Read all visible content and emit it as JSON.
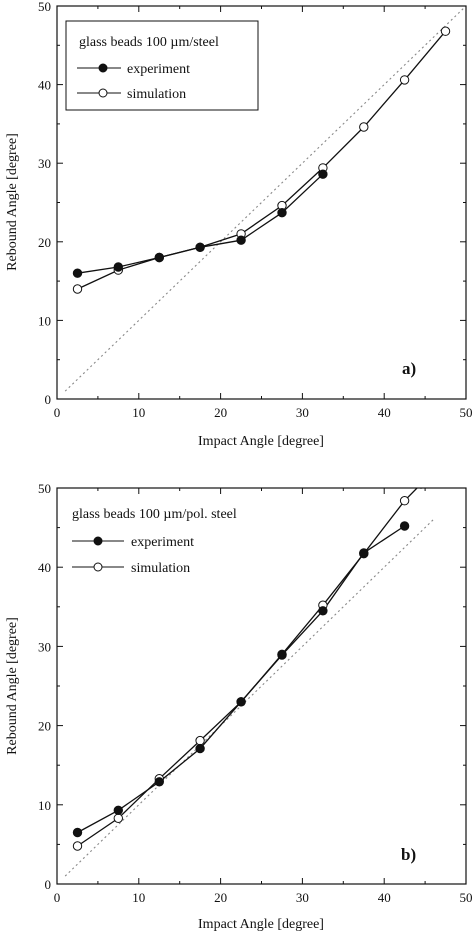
{
  "chart_data": [
    {
      "type": "line",
      "panel_label": "a)",
      "xlabel": "Impact Angle [degree]",
      "ylabel": "Rebound Angle [degree]",
      "xlim": [
        0,
        50
      ],
      "ylim": [
        0,
        50
      ],
      "x_ticks": [
        "0",
        "10",
        "20",
        "30",
        "40",
        "50"
      ],
      "y_ticks": [
        "0",
        "10",
        "20",
        "30",
        "40",
        "50"
      ],
      "legend": {
        "title": "glass beads 100 µm/steel",
        "placement": "top-left",
        "boxed": true
      },
      "series": [
        {
          "name": "experiment",
          "marker": "filled-circle",
          "points": [
            [
              2.5,
              16.0
            ],
            [
              7.5,
              16.8
            ],
            [
              12.5,
              18.0
            ],
            [
              17.5,
              19.3
            ],
            [
              22.5,
              20.2
            ],
            [
              27.5,
              23.7
            ],
            [
              32.5,
              28.6
            ]
          ]
        },
        {
          "name": "simulation",
          "marker": "open-circle",
          "points": [
            [
              2.5,
              14.0
            ],
            [
              7.5,
              16.4
            ],
            [
              12.5,
              18.0
            ],
            [
              17.5,
              19.3
            ],
            [
              22.5,
              21.0
            ],
            [
              27.5,
              24.6
            ],
            [
              32.5,
              29.4
            ],
            [
              37.5,
              34.6
            ],
            [
              42.5,
              40.6
            ],
            [
              47.5,
              46.8
            ]
          ]
        }
      ],
      "reference_line": {
        "style": "dotted",
        "points": [
          [
            1,
            1
          ],
          [
            50,
            50
          ]
        ]
      }
    },
    {
      "type": "line",
      "panel_label": "b)",
      "xlabel": "Impact Angle [degree]",
      "ylabel": "Rebound Angle [degree]",
      "xlim": [
        0,
        50
      ],
      "ylim": [
        0,
        50
      ],
      "x_ticks": [
        "0",
        "10",
        "20",
        "30",
        "40",
        "50"
      ],
      "y_ticks": [
        "0",
        "10",
        "20",
        "30",
        "40",
        "50"
      ],
      "legend": {
        "title": "glass beads 100 µm/pol. steel",
        "placement": "top-left",
        "boxed": false
      },
      "series": [
        {
          "name": "experiment",
          "marker": "filled-circle",
          "points": [
            [
              2.5,
              6.5
            ],
            [
              7.5,
              9.3
            ],
            [
              12.5,
              12.9
            ],
            [
              17.5,
              17.1
            ],
            [
              22.5,
              23.0
            ],
            [
              27.5,
              28.9
            ],
            [
              32.5,
              34.5
            ],
            [
              37.5,
              41.8
            ],
            [
              42.5,
              45.2
            ]
          ]
        },
        {
          "name": "simulation",
          "marker": "open-circle",
          "points": [
            [
              2.5,
              4.8
            ],
            [
              7.5,
              8.3
            ],
            [
              12.5,
              13.3
            ],
            [
              17.5,
              18.1
            ],
            [
              22.5,
              23.0
            ],
            [
              27.5,
              29.0
            ],
            [
              32.5,
              35.2
            ],
            [
              37.5,
              41.7
            ],
            [
              42.5,
              48.4
            ],
            [
              44.5,
              50.5
            ]
          ]
        }
      ],
      "reference_line": {
        "style": "dotted",
        "points": [
          [
            1,
            1
          ],
          [
            46,
            46
          ]
        ]
      }
    }
  ]
}
